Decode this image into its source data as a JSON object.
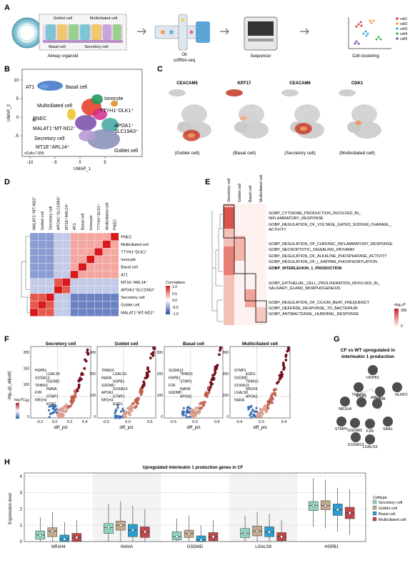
{
  "panels": {
    "A": {
      "label": "A",
      "organoid_cells": [
        "Goblet cell",
        "Multiciliated cell",
        "Basal cell",
        "Secretory cell"
      ],
      "steps": [
        "Airway organoid",
        "Oil",
        "scRNA-seq",
        "Sequencer",
        "Cell clustering"
      ],
      "legend": [
        "cell1",
        "cell2",
        "cell3",
        "cell4",
        "cell5"
      ],
      "legend_colors": [
        "#e23b3b",
        "#f3a43b",
        "#3bb0d8",
        "#45b35a",
        "#7a4fb0"
      ]
    },
    "B": {
      "label": "B",
      "xlabel": "UMAP_1",
      "ylabel": "UMAP_2",
      "xticks": [
        "-10",
        "-5",
        "0",
        "5"
      ],
      "yticks": [
        "10",
        "5",
        "0",
        "-5"
      ],
      "ncells": "nCells:7,656",
      "clusters": [
        "AT1",
        "Basal cell",
        "Ionocyte",
        "TTYH1⁺DLK1⁺",
        "Multiciliated cell",
        "PNEC",
        "APOA1⁺",
        "SLC19A3⁺",
        "MALAT1⁺MT-ND2⁺",
        "Secretory cell",
        "MT1E⁺ARL14⁺",
        "Goblet cell"
      ]
    },
    "C": {
      "label": "C",
      "genes": [
        "CEACAM5",
        "KRT17",
        "CEACAM6",
        "CDK1"
      ],
      "celltypes": [
        "(Goblet cell)",
        "(Basal cell)",
        "(Secretory cell)",
        "(Multiciliated cell)"
      ]
    },
    "D": {
      "label": "D",
      "col_labels": [
        "MALAT1⁺MT-ND2⁺",
        "Goblet cell",
        "Secretory cell",
        "APOA1⁺SLC19A3⁺",
        "MT1E⁺ARL14⁺",
        "AT1",
        "Basal cell",
        "Ionocyte",
        "TTYH1⁺DLK1⁺",
        "Multiciliated cell",
        "PNEC"
      ],
      "row_labels": [
        "PNEC",
        "Multiciliated cell",
        "TTYH1⁺DLK1⁺",
        "Ionocyte",
        "Basal cell",
        "AT1",
        "MT1E⁺ARL14⁺",
        "APOA1⁺SLC19A3⁺",
        "Secretory cell",
        "Goblet cell",
        "MALAT1⁺MT-ND2⁺"
      ],
      "legend_title": "Correlation",
      "legend_ticks": [
        "1.0",
        "0.5",
        "0.0",
        "-0.5",
        "-1.0"
      ]
    },
    "E": {
      "label": "E",
      "col_labels": [
        "Secretory cell",
        "Goblet cell",
        "Basal cell",
        "Multiciliated cell"
      ],
      "terms": [
        "GOBP_CYTOKINE_PRODUCTION_INVOLVED_IN_",
        "INFLAMMATORY_RESPONSE",
        "GOBP_REGULATION_OF_VOLTAGE_GATED_SODIUM_CHANNEL_",
        "ACTIVITY",
        "GOBP_REGULATION_OF_CHRONIC_INFLAMMATORY_RESPONSE",
        "GOBP_NECROPTOTIC_SIGNALING_PATHWAY",
        "GOBP_REGULATION_OF_ALKALINE_PHOSPHATASE_ACTIVITY",
        "GOBP_REGULATION_OF_I_KAPPAB_PHOSPHORYLATION",
        "GOBP_INTERLEUKIN_1_PRODUCTION",
        "GOBP_EPITHELIAL_CELL_PROLIFERATION_INVOLVED_IN_",
        "SALIVARY_GLAND_MORPHOGENESIS",
        "GOBP_REGULATION_OF_CILIUM_BEAT_FREQUENCY",
        "GOBP_DEFENSE_RESPONSE_TO_BACTERIUM",
        "GOBP_ANTIBACTERIAL_HUMORAL_RESPONSE"
      ],
      "legend_title": "-log₁₀P",
      "legend_ticks": [
        "306",
        "0"
      ]
    },
    "F": {
      "label": "F",
      "ylabel": "-log₁₀(p_adjust)",
      "xlabel": "diff_pct",
      "legend_title": "log₂FC",
      "panels": [
        {
          "title": "Secretory cell",
          "xticks": [
            "-0.2",
            "0.0",
            "0.2",
            "0.4"
          ],
          "yticks": [
            "200",
            "150",
            "100",
            "50",
            "0"
          ],
          "genes": [
            "HSPB1",
            "LGALS9",
            "S100A13",
            "GSDMD",
            "TRIM16",
            "INAVA",
            "F2R",
            "STMP1",
            "NR1H4",
            "EGR1"
          ]
        },
        {
          "title": "Goblet cell",
          "xticks": [
            "-0.5",
            "0.0",
            "0.5"
          ],
          "yticks": [
            "300",
            "200",
            "100",
            "0"
          ],
          "genes": [
            "TRIM16",
            "LGALS9",
            "INAVA",
            "HSPB1",
            "GSDMD",
            "S100A13",
            "APOA1",
            "STMP1",
            "NR1H4",
            "EGR1"
          ]
        },
        {
          "title": "Basal cell",
          "xticks": [
            "-0.5",
            "0.0",
            "0.5"
          ],
          "yticks": [
            "300",
            "200",
            "100",
            "0"
          ],
          "genes": [
            "S100A13",
            "TRIM16",
            "HSPB1",
            "STMP1",
            "F2R",
            "INAVA",
            "GSDMD",
            "APOA1"
          ]
        },
        {
          "title": "Multiciliated cell",
          "xticks": [
            "-0.4",
            "0.0",
            "0.4"
          ],
          "yticks": [
            "300",
            "200",
            "100",
            "0"
          ],
          "genes": [
            "STMP1",
            "EGR1",
            "GSDMD",
            "TRIM16",
            "S100A13",
            "NR1H4",
            "LGALS9",
            "APOA1",
            "INAVA"
          ]
        }
      ]
    },
    "G": {
      "label": "G",
      "title_line1": "CF vs WT upregulated in",
      "title_line2": "interleukin 1 production",
      "genes": [
        "HSPB1",
        "TRIM16",
        "INAVA",
        "NLRP2",
        "NR1H4",
        "EGR1",
        "APOA1",
        "STMP1",
        "GSDMD",
        "F2R",
        "SAA1",
        "S100A13",
        "LGALS9"
      ]
    },
    "H": {
      "label": "H",
      "title": "Upregulated interleukin 1 production genes in CF",
      "ylabel": "Expression level",
      "yticks": [
        "4",
        "3",
        "2",
        "1",
        "0"
      ],
      "legend_title": "Celltype",
      "celltypes": [
        "Secretory cell",
        "Goblet cell",
        "Basal cell",
        "Multiciliated cell"
      ],
      "colors": [
        "#8fd3c1",
        "#c4a98e",
        "#2aa0d2",
        "#c0464a"
      ]
    }
  },
  "chart_data": [
    {
      "type": "heatmap",
      "title": "",
      "categories": [
        "MALAT1⁺MT-ND2⁺",
        "Goblet cell",
        "Secretory cell",
        "APOA1⁺SLC19A3⁺",
        "MT1E⁺ARL14⁺",
        "AT1",
        "Basal cell",
        "Ionocyte",
        "TTYH1⁺DLK1⁺",
        "Multiciliated cell",
        "PNEC"
      ],
      "ylim": [
        -1.0,
        1.0
      ]
    },
    {
      "type": "bar",
      "title": "Upregulated interleukin 1 production genes in CF",
      "categories": [
        "NR1H4",
        "INAVA",
        "GSDMD",
        "LGALS9",
        "HSPB1"
      ],
      "ylabel": "Expression level",
      "ylim": [
        0,
        4.2
      ],
      "series": [
        {
          "name": "Secretory cell",
          "median": [
            0.4,
            0.85,
            0.3,
            0.5,
            2.2
          ],
          "q1": [
            0.15,
            0.5,
            0.1,
            0.25,
            1.9
          ],
          "q3": [
            0.65,
            1.1,
            0.6,
            0.8,
            2.45
          ],
          "lo": [
            0,
            0,
            0,
            0,
            0.9
          ],
          "hi": [
            1.5,
            2.3,
            1.4,
            1.6,
            3.9
          ]
        },
        {
          "name": "Goblet cell",
          "median": [
            0.65,
            1.0,
            0.5,
            0.65,
            2.2
          ],
          "q1": [
            0.3,
            0.7,
            0.25,
            0.35,
            1.95
          ],
          "q3": [
            0.85,
            1.25,
            0.7,
            0.95,
            2.5
          ],
          "lo": [
            0,
            0,
            0,
            0,
            0.8
          ],
          "hi": [
            1.8,
            2.5,
            1.6,
            1.8,
            3.8
          ]
        },
        {
          "name": "Basal cell",
          "median": [
            0.15,
            0.7,
            0.1,
            0.6,
            1.95
          ],
          "q1": [
            0.0,
            0.3,
            0.0,
            0.3,
            1.6
          ],
          "q3": [
            0.4,
            1.05,
            0.35,
            0.9,
            2.3
          ],
          "lo": [
            0,
            0,
            0,
            0,
            0.6
          ],
          "hi": [
            1.2,
            2.2,
            1.0,
            1.7,
            3.3
          ]
        },
        {
          "name": "Multiciliated cell",
          "median": [
            0.25,
            0.6,
            0.3,
            0.3,
            1.75
          ],
          "q1": [
            0.0,
            0.25,
            0.05,
            0.05,
            1.4
          ],
          "q3": [
            0.5,
            0.9,
            0.55,
            0.55,
            2.1
          ],
          "lo": [
            0,
            0,
            0,
            0,
            0.4
          ],
          "hi": [
            1.3,
            2.0,
            1.3,
            1.3,
            3.2
          ]
        }
      ]
    }
  ]
}
